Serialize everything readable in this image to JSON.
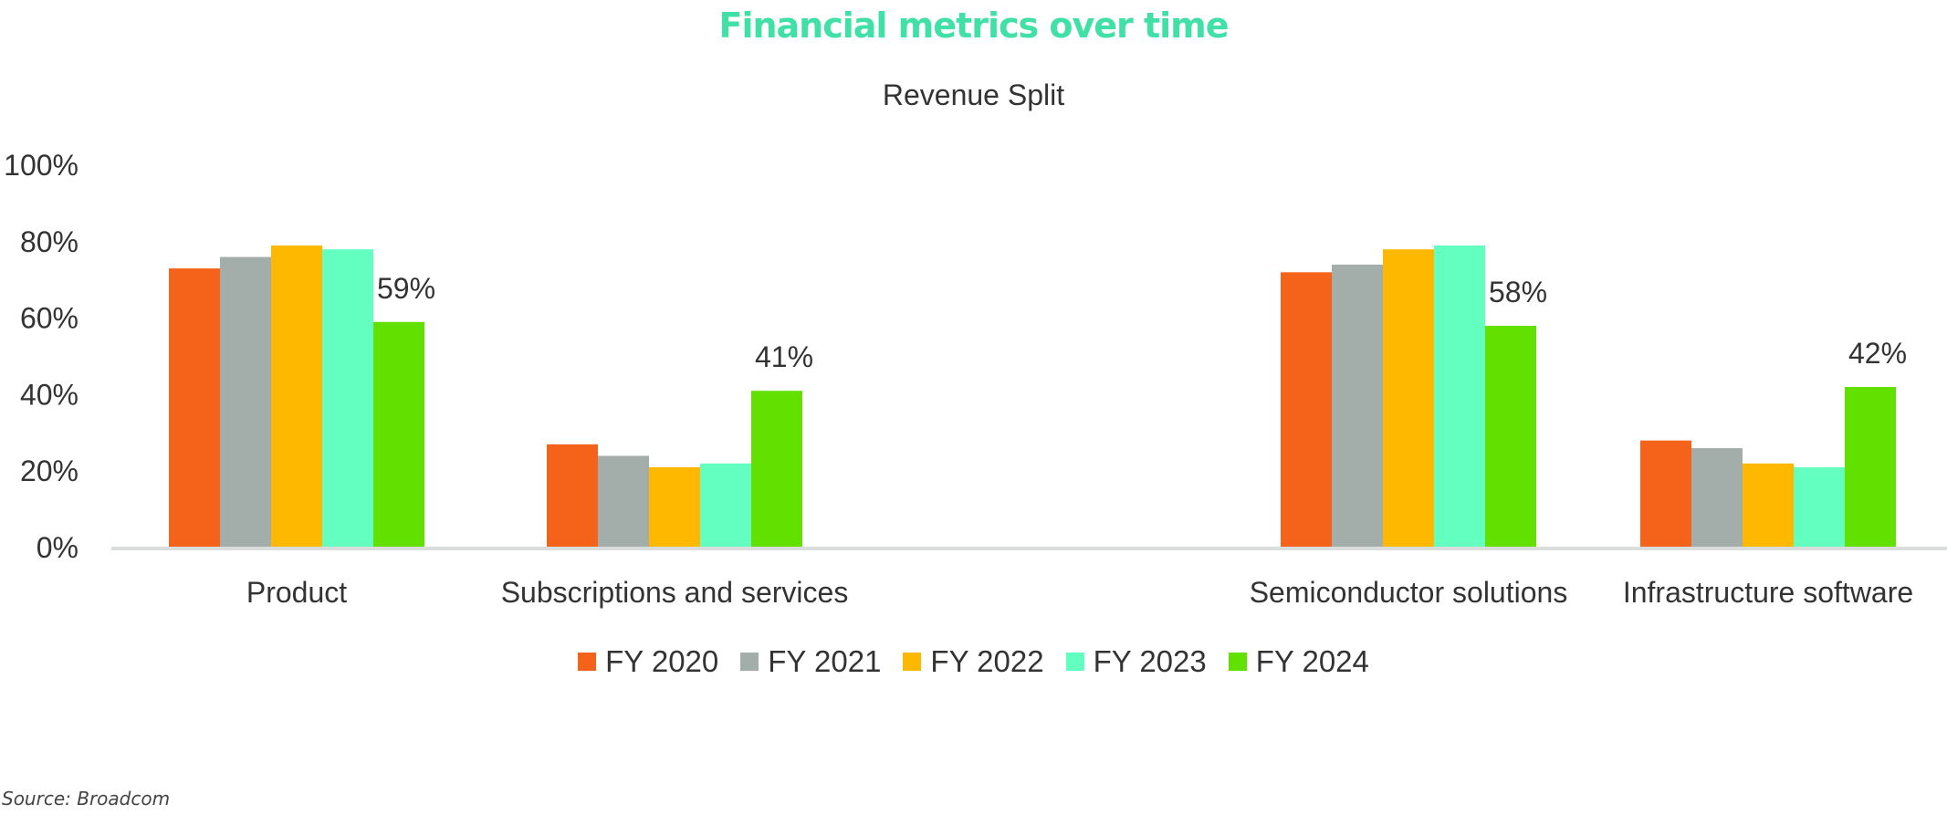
{
  "chart_data": {
    "type": "bar",
    "title": "Financial metrics over time",
    "subtitle": "Revenue Split",
    "title_color": "#40e0a6",
    "source": "Source: Broadcom",
    "categories": [
      "Product",
      "Subscriptions and services",
      "Semiconductor solutions",
      "Infrastructure software"
    ],
    "ylim": [
      0,
      100
    ],
    "yticks": [
      "0%",
      "20%",
      "40%",
      "60%",
      "80%",
      "100%"
    ],
    "ytick_values": [
      0,
      20,
      40,
      60,
      80,
      100
    ],
    "grid": false,
    "legend_position": "bottom",
    "series": [
      {
        "name": "FY 2020",
        "color": "#f5621a",
        "values": [
          73,
          27,
          72,
          28
        ]
      },
      {
        "name": "FY 2021",
        "color": "#a3aeab",
        "values": [
          76,
          24,
          74,
          26
        ]
      },
      {
        "name": "FY 2022",
        "color": "#ffb800",
        "values": [
          79,
          21,
          78,
          22
        ]
      },
      {
        "name": "FY 2023",
        "color": "#63ffc1",
        "values": [
          78,
          22,
          79,
          21
        ]
      },
      {
        "name": "FY 2024",
        "color": "#62e000",
        "values": [
          59,
          41,
          58,
          42
        ]
      }
    ],
    "data_labels": [
      {
        "category": 0,
        "series": 4,
        "text": "59%"
      },
      {
        "category": 1,
        "series": 4,
        "text": "41%"
      },
      {
        "category": 2,
        "series": 4,
        "text": "58%"
      },
      {
        "category": 3,
        "series": 4,
        "text": "42%"
      }
    ]
  }
}
